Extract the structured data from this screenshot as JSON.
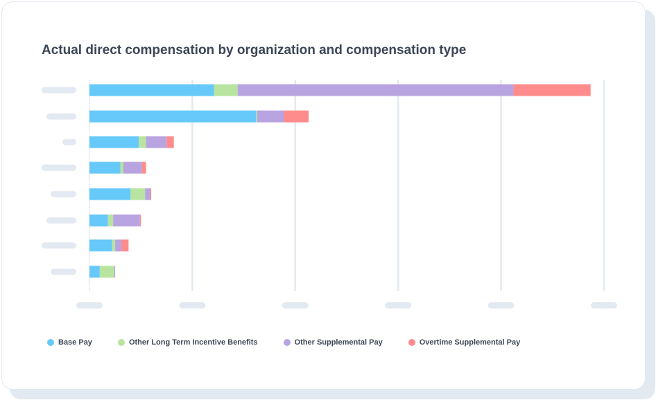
{
  "chart_data": {
    "type": "bar",
    "orientation": "horizontal",
    "stacked": true,
    "title": "Actual direct compensation by organization and compensation type",
    "categories": [
      "",
      "",
      "",
      "",
      "",
      "",
      "",
      ""
    ],
    "category_labels_redacted": true,
    "tick_labels_redacted": true,
    "xlim": [
      0,
      5
    ],
    "grid": true,
    "legend_position": "bottom",
    "series": [
      {
        "name": "Base Pay",
        "color": "#66c9f9",
        "values": [
          1.21,
          1.62,
          0.48,
          0.3,
          0.4,
          0.18,
          0.22,
          0.1
        ]
      },
      {
        "name": "Other Long Term Incentive Benefits",
        "color": "#b8e4a0",
        "values": [
          0.23,
          0.01,
          0.07,
          0.03,
          0.14,
          0.05,
          0.03,
          0.14
        ]
      },
      {
        "name": "Other Supplemental Pay",
        "color": "#b8a4e0",
        "values": [
          2.68,
          0.26,
          0.2,
          0.18,
          0.05,
          0.26,
          0.06,
          0.01
        ]
      },
      {
        "name": "Overtime Supplemental Pay",
        "color": "#ff8c8c",
        "values": [
          0.75,
          0.24,
          0.07,
          0.04,
          0.01,
          0.01,
          0.07,
          0.0
        ]
      }
    ]
  }
}
